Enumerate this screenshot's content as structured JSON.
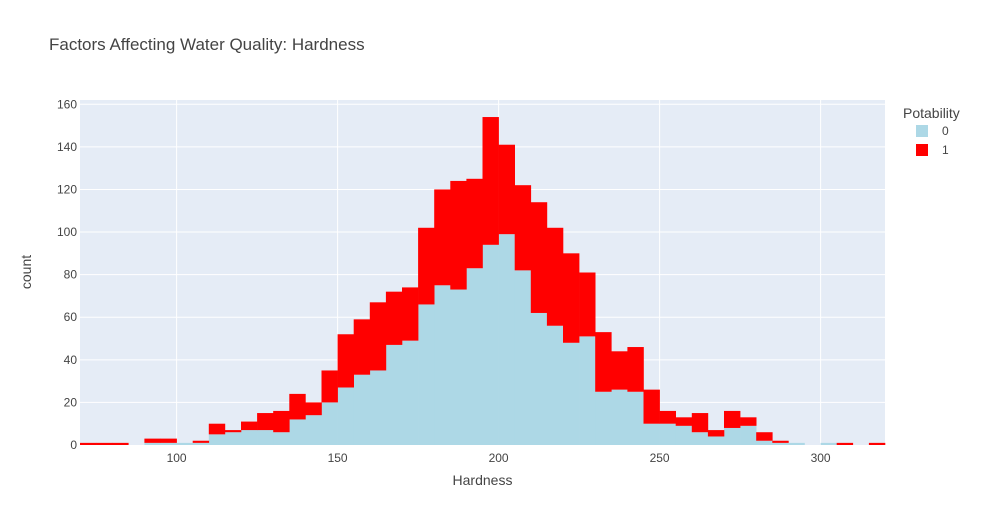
{
  "chart_data": {
    "type": "bar",
    "mode": "stacked-histogram",
    "title": "Factors Affecting Water Quality: Hardness",
    "xlabel": "Hardness",
    "ylabel": "count",
    "xlim": [
      70,
      320
    ],
    "ylim": [
      0,
      162
    ],
    "xticks": [
      100,
      150,
      200,
      250,
      300
    ],
    "yticks": [
      0,
      20,
      40,
      60,
      80,
      100,
      120,
      140,
      160
    ],
    "grid": true,
    "bin_width": 5,
    "bin_starts": [
      70,
      75,
      80,
      85,
      90,
      95,
      100,
      105,
      110,
      115,
      120,
      125,
      130,
      135,
      140,
      145,
      150,
      155,
      160,
      165,
      170,
      175,
      180,
      185,
      190,
      195,
      200,
      205,
      210,
      215,
      220,
      225,
      230,
      235,
      240,
      245,
      250,
      255,
      260,
      265,
      270,
      275,
      280,
      285,
      290,
      295,
      300,
      305,
      310,
      315
    ],
    "legend": {
      "title": "Potability",
      "position": "top-right"
    },
    "series": [
      {
        "name": "0",
        "color": "#add8e6",
        "values": [
          0,
          0,
          0,
          0,
          1,
          1,
          1,
          1,
          5,
          6,
          7,
          7,
          6,
          12,
          14,
          20,
          27,
          33,
          35,
          47,
          49,
          66,
          75,
          73,
          83,
          94,
          99,
          82,
          62,
          56,
          48,
          51,
          25,
          26,
          25,
          10,
          10,
          9,
          6,
          4,
          8,
          9,
          2,
          1,
          1,
          0,
          1,
          0,
          0,
          0
        ]
      },
      {
        "name": "1",
        "color": "#ff0000",
        "values": [
          1,
          1,
          1,
          0,
          2,
          2,
          0,
          1,
          5,
          1,
          4,
          8,
          10,
          12,
          6,
          15,
          25,
          26,
          32,
          25,
          25,
          36,
          45,
          51,
          42,
          60,
          42,
          40,
          52,
          46,
          42,
          30,
          28,
          18,
          21,
          16,
          6,
          4,
          9,
          3,
          8,
          4,
          4,
          1,
          0,
          0,
          0,
          1,
          0,
          1
        ]
      }
    ]
  }
}
